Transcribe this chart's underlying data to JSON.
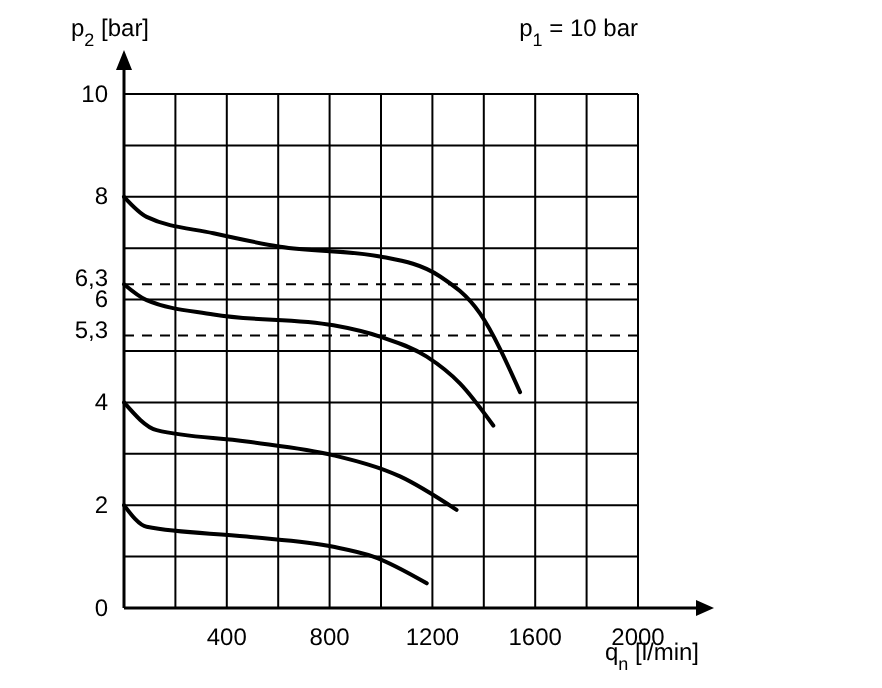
{
  "chart_data": {
    "type": "line",
    "xlabel": "q$_{n}$ [l/min]",
    "ylabel": "p$_{2}$ [bar]",
    "annotations": [
      "p$_{1}$ = 10 bar"
    ],
    "xlim": [
      0,
      2000
    ],
    "ylim": [
      0,
      10
    ],
    "xticks": [
      {
        "value": 0,
        "label": null
      },
      {
        "value": 200,
        "label": null
      },
      400,
      {
        "value": 600,
        "label": null
      },
      800,
      {
        "value": 1000,
        "label": null
      },
      1200,
      {
        "value": 1400,
        "label": null
      },
      1600,
      {
        "value": 1800,
        "label": null
      },
      2000
    ],
    "yticks": [
      0,
      {
        "value": 1,
        "label": null
      },
      2,
      {
        "value": 3,
        "label": null
      },
      4,
      {
        "value": 5,
        "label": null
      },
      6,
      {
        "value": 7,
        "label": null
      },
      8,
      {
        "value": 9,
        "label": null
      },
      10
    ],
    "grid": true,
    "marker": "none",
    "line_style": "solid",
    "ref_lines": [
      {
        "axis": "y",
        "value": 6.3,
        "label": "6,3",
        "line_style": "dashed",
        "color": "#000000"
      },
      {
        "axis": "y",
        "value": 5.3,
        "label": "5,3",
        "line_style": "dashed",
        "color": "#000000"
      }
    ],
    "series": [
      {
        "color": "#000000",
        "x": [
          0,
          88,
          348,
          607,
          996,
          1230,
          1385,
          1541
        ],
        "values": [
          8,
          7.61,
          7.29,
          7.03,
          6.84,
          6.45,
          5.73,
          4.2
        ]
      },
      {
        "color": "#000000",
        "x": [
          0,
          88,
          348,
          815,
          996,
          1178,
          1307,
          1437
        ],
        "values": [
          6.3,
          5.99,
          5.71,
          5.5,
          5.28,
          4.89,
          4.37,
          3.55
        ]
      },
      {
        "color": "#000000",
        "x": [
          0,
          127,
          477,
          815,
          1074,
          1294
        ],
        "values": [
          4,
          3.46,
          3.24,
          2.97,
          2.56,
          1.91
        ]
      },
      {
        "color": "#000000",
        "x": [
          0,
          88,
          477,
          815,
          970,
          1178
        ],
        "values": [
          2,
          1.58,
          1.39,
          1.19,
          1.0,
          0.48
        ]
      }
    ]
  }
}
